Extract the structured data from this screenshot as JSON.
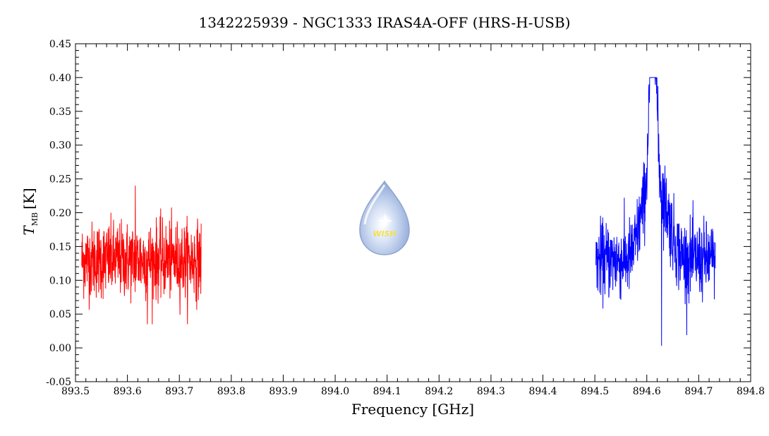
{
  "chart_data": {
    "type": "line",
    "title": "1342225939 - NGC1333 IRAS4A-OFF (HRS-H-USB)",
    "xlabel": "Frequency [GHz]",
    "ylabel_main": "T",
    "ylabel_sub": "MB",
    "ylabel_unit": "[K]",
    "xlim": [
      893.5,
      894.8
    ],
    "ylim": [
      -0.05,
      0.45
    ],
    "x_ticks": [
      "893.5",
      "893.6",
      "893.7",
      "893.8",
      "893.9",
      "894.0",
      "894.1",
      "894.2",
      "894.3",
      "894.4",
      "894.5",
      "894.6",
      "894.7",
      "894.8"
    ],
    "y_ticks": [
      "-0.05",
      "0.00",
      "0.05",
      "0.10",
      "0.15",
      "0.20",
      "0.25",
      "0.30",
      "0.35",
      "0.40",
      "0.45"
    ],
    "series": [
      {
        "color": "#ff0000",
        "x_range": [
          893.512,
          893.742
        ],
        "baseline": 0.13,
        "noise_sigma": 0.028,
        "min": 0.035,
        "max": 0.24,
        "lines": []
      },
      {
        "color": "#0000ff",
        "x_range": [
          894.502,
          894.732
        ],
        "baseline": 0.13,
        "noise_sigma": 0.028,
        "min": 0.003,
        "max": 0.4,
        "lines": [
          {
            "center": 894.612,
            "peak": 0.3,
            "width": 0.006
          },
          {
            "center": 894.625,
            "peak": 0.1,
            "width": 0.018
          },
          {
            "center": 894.595,
            "peak": 0.06,
            "width": 0.012
          }
        ]
      }
    ],
    "logo_text": "WISH"
  }
}
